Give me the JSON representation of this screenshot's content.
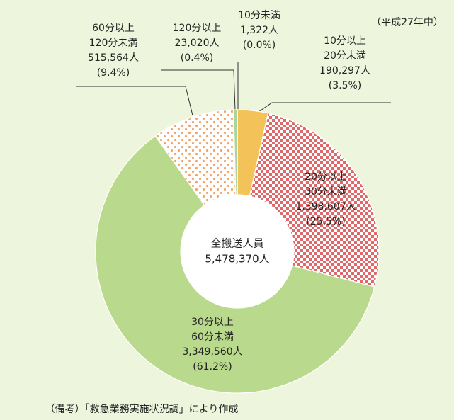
{
  "chart_data": {
    "type": "donut",
    "note": "（平成27年中）",
    "source": "（備考）「救急業務実施状況調」により作成",
    "center_label": [
      "全搬送人員",
      "5,478,370人"
    ],
    "categories": [
      [
        "10分未満"
      ],
      [
        "10分以上",
        "20分未満"
      ],
      [
        "20分以上",
        "30分未満"
      ],
      [
        "30分以上",
        "60分未満"
      ],
      [
        "60分以上",
        "120分未満"
      ],
      [
        "120分以上"
      ]
    ],
    "values": [
      1322,
      190297,
      1398607,
      3349560,
      515564,
      23020
    ],
    "value_labels": [
      "1,322人",
      "190,297人",
      "1,398,607人",
      "3,349,560人",
      "515,564人",
      "23,020人"
    ],
    "percents": [
      0.0,
      3.5,
      25.5,
      61.2,
      9.4,
      0.4
    ],
    "percent_labels": [
      "(0.0%)",
      "(3.5%)",
      "(25.5%)",
      "(61.2%)",
      "(9.4%)",
      "(0.4%)"
    ],
    "colors": [
      "#7fc6b0",
      "#f3c35a",
      "#e06868",
      "#b9d98c",
      "#f2a46a",
      "#a9d6a0"
    ],
    "patterns": [
      null,
      null,
      "checker",
      null,
      "dots",
      null
    ]
  }
}
